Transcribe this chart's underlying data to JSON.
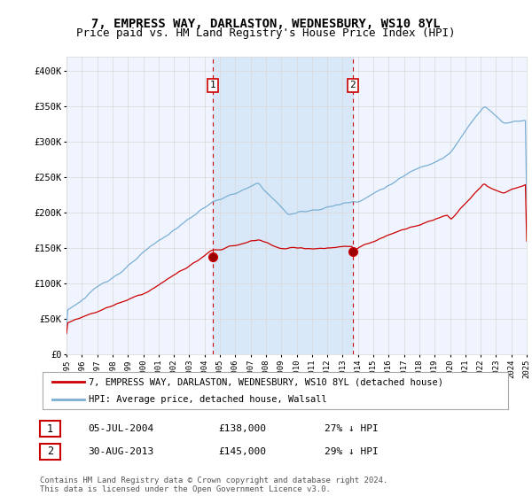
{
  "title": "7, EMPRESS WAY, DARLASTON, WEDNESBURY, WS10 8YL",
  "subtitle": "Price paid vs. HM Land Registry's House Price Index (HPI)",
  "ylim": [
    0,
    420000
  ],
  "yticks": [
    0,
    50000,
    100000,
    150000,
    200000,
    250000,
    300000,
    350000,
    400000
  ],
  "ytick_labels": [
    "£0",
    "£50K",
    "£100K",
    "£150K",
    "£200K",
    "£250K",
    "£300K",
    "£350K",
    "£400K"
  ],
  "background_color": "#ffffff",
  "plot_bg_color": "#f0f4ff",
  "grid_color": "#d8d8d8",
  "hpi_color": "#7aafd4",
  "price_color": "#cc0000",
  "shade_color": "#d8e8f8",
  "sale1_year": 2004.54,
  "sale1_price": 138000,
  "sale2_year": 2013.67,
  "sale2_price": 145000,
  "legend_red_label": "7, EMPRESS WAY, DARLASTON, WEDNESBURY, WS10 8YL (detached house)",
  "legend_blue_label": "HPI: Average price, detached house, Walsall",
  "table_row1": [
    "1",
    "05-JUL-2004",
    "£138,000",
    "27% ↓ HPI"
  ],
  "table_row2": [
    "2",
    "30-AUG-2013",
    "£145,000",
    "29% ↓ HPI"
  ],
  "footer": "Contains HM Land Registry data © Crown copyright and database right 2024.\nThis data is licensed under the Open Government Licence v3.0.",
  "title_fontsize": 10,
  "subtitle_fontsize": 9,
  "tick_fontsize": 7.5
}
